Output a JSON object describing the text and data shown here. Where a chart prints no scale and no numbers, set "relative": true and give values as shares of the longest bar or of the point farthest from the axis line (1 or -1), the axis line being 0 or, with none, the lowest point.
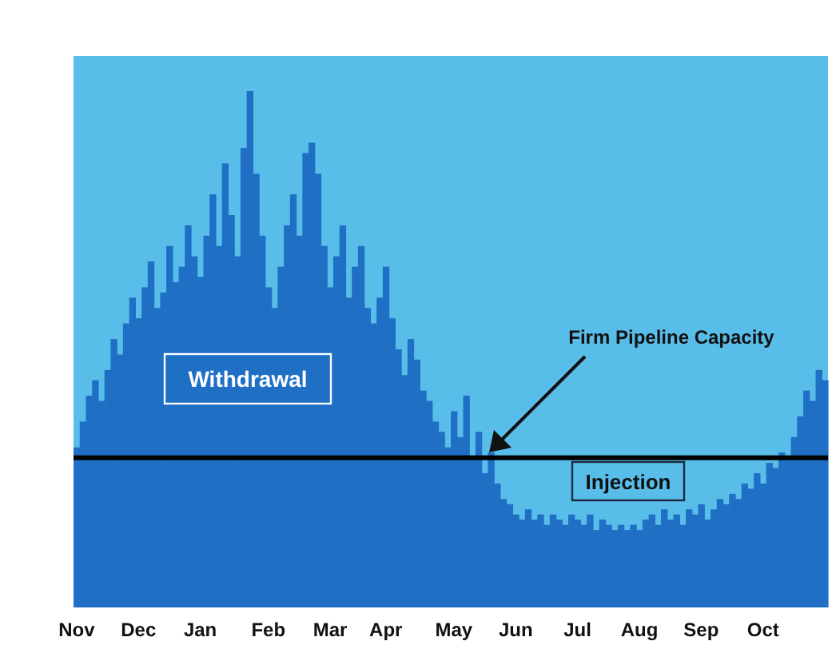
{
  "chart_data": {
    "type": "bar",
    "relative": true,
    "color": "#1f6fc5",
    "categories": [
      "Nov",
      null,
      null,
      null,
      null,
      null,
      null,
      null,
      null,
      null,
      "Dec",
      null,
      null,
      null,
      null,
      null,
      null,
      null,
      null,
      null,
      "Jan",
      null,
      null,
      null,
      null,
      null,
      null,
      null,
      null,
      null,
      null,
      "Feb",
      null,
      null,
      null,
      null,
      null,
      null,
      null,
      null,
      null,
      "Mar",
      null,
      null,
      null,
      null,
      null,
      null,
      null,
      null,
      "Apr",
      null,
      null,
      null,
      null,
      null,
      null,
      null,
      null,
      null,
      null,
      "May",
      null,
      null,
      null,
      null,
      null,
      null,
      null,
      null,
      null,
      "Jun",
      null,
      null,
      null,
      null,
      null,
      null,
      null,
      null,
      null,
      "Jul",
      null,
      null,
      null,
      null,
      null,
      null,
      null,
      null,
      null,
      "Aug",
      null,
      null,
      null,
      null,
      null,
      null,
      null,
      null,
      null,
      "Sep",
      null,
      null,
      null,
      null,
      null,
      null,
      null,
      null,
      null,
      "Oct",
      null,
      null,
      null,
      null,
      null,
      null,
      null,
      null,
      null,
      null
    ],
    "values": [
      0.31,
      0.36,
      0.41,
      0.44,
      0.4,
      0.46,
      0.52,
      0.49,
      0.55,
      0.6,
      0.56,
      0.62,
      0.67,
      0.58,
      0.61,
      0.7,
      0.63,
      0.66,
      0.74,
      0.68,
      0.64,
      0.72,
      0.8,
      0.7,
      0.86,
      0.76,
      0.68,
      0.89,
      1.0,
      0.84,
      0.72,
      0.62,
      0.58,
      0.66,
      0.74,
      0.8,
      0.72,
      0.88,
      0.9,
      0.84,
      0.7,
      0.62,
      0.68,
      0.74,
      0.6,
      0.66,
      0.7,
      0.58,
      0.55,
      0.6,
      0.66,
      0.56,
      0.5,
      0.45,
      0.52,
      0.48,
      0.42,
      0.4,
      0.36,
      0.34,
      0.31,
      0.38,
      0.33,
      0.41,
      0.29,
      0.34,
      0.26,
      0.3,
      0.24,
      0.21,
      0.2,
      0.18,
      0.17,
      0.19,
      0.17,
      0.18,
      0.16,
      0.18,
      0.17,
      0.16,
      0.18,
      0.17,
      0.16,
      0.18,
      0.15,
      0.17,
      0.16,
      0.15,
      0.16,
      0.15,
      0.16,
      0.15,
      0.17,
      0.18,
      0.16,
      0.19,
      0.17,
      0.18,
      0.16,
      0.19,
      0.18,
      0.2,
      0.17,
      0.19,
      0.21,
      0.2,
      0.22,
      0.21,
      0.24,
      0.23,
      0.26,
      0.24,
      0.28,
      0.27,
      0.3,
      0.29,
      0.33,
      0.37,
      0.42,
      0.4,
      0.46,
      0.44
    ],
    "ref_lines": [
      {
        "axis": "y",
        "value": 0.29,
        "label": "Firm Pipeline Capacity",
        "color": "#000000"
      }
    ],
    "annotations": [
      "Withdrawal",
      "Injection"
    ]
  }
}
